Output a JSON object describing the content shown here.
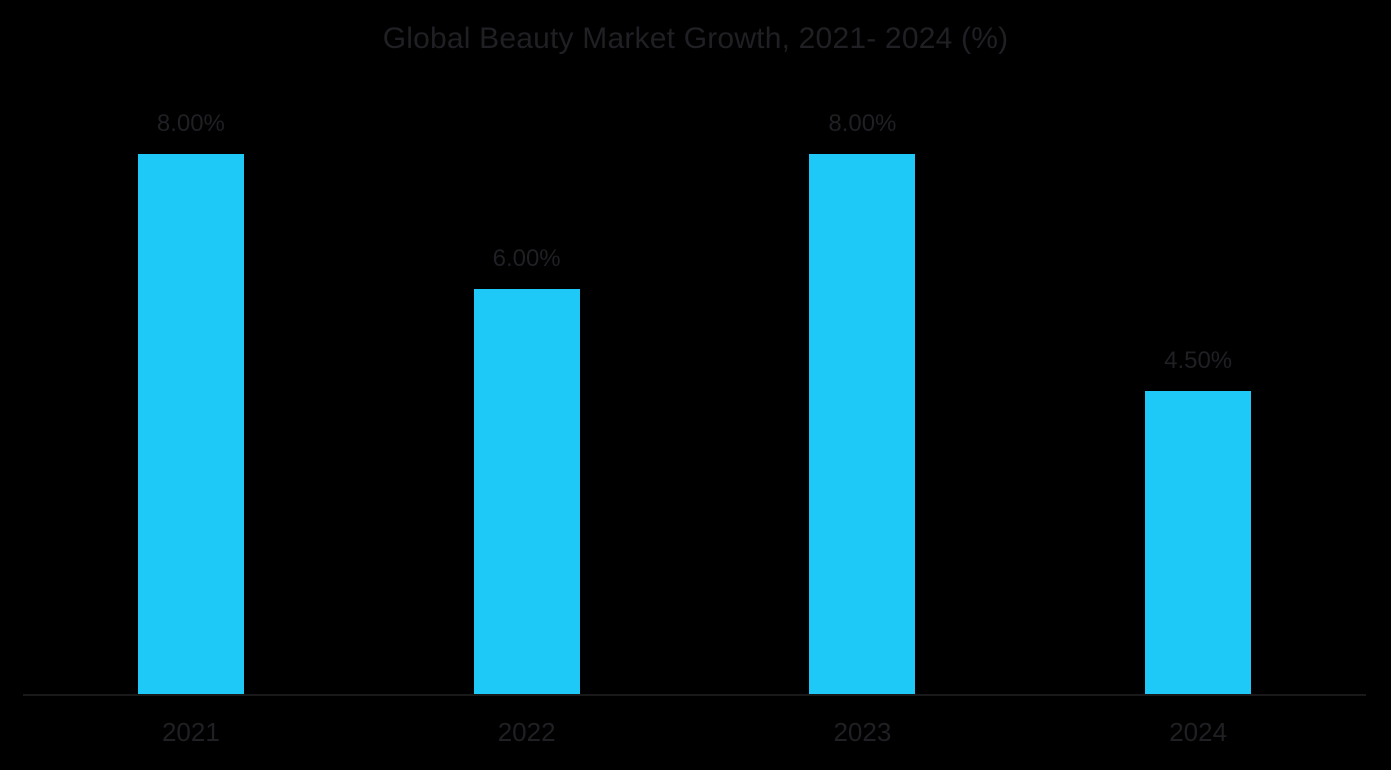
{
  "colors": {
    "background": "#000000",
    "bar": "#1EC9F8",
    "text": "#1F1F24",
    "axis": "#191919"
  },
  "chart_data": {
    "type": "bar",
    "title": "Global Beauty Market Growth, 2021- 2024 (%)",
    "categories": [
      "2021",
      "2022",
      "2023",
      "2024"
    ],
    "values": [
      8.0,
      6.0,
      8.0,
      4.5
    ],
    "data_labels": [
      "8.00%",
      "6.00%",
      "8.00%",
      "4.50%"
    ],
    "xlabel": "",
    "ylabel": "",
    "ylim": [
      0,
      9
    ],
    "grid": false,
    "legend": false,
    "bar_color": "#1EC9F8",
    "value_unit": "%"
  }
}
